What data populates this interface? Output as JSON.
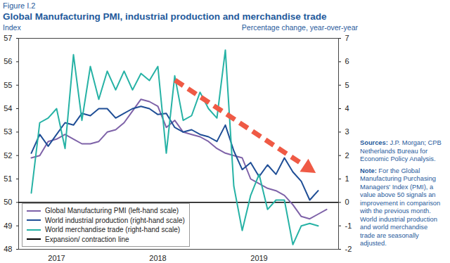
{
  "chart_data": {
    "type": "line",
    "figure_label": "Figure I.2",
    "title": "Global Manufacturing PMI, industrial production and merchandise trade",
    "y_label": "Index",
    "y2_label": "Percentage change, year-over-year",
    "categories": [
      null,
      null,
      null,
      "2017",
      null,
      null,
      null,
      null,
      null,
      null,
      null,
      null,
      null,
      null,
      null,
      "2018",
      null,
      null,
      null,
      null,
      null,
      null,
      null,
      null,
      null,
      null,
      null,
      "2019",
      null,
      null,
      null,
      null,
      null,
      null,
      null,
      null
    ],
    "ylim": [
      48,
      57
    ],
    "yticks": [
      48,
      49,
      50,
      51,
      52,
      53,
      54,
      55,
      56,
      57
    ],
    "y2lim": [
      -2,
      7
    ],
    "y2ticks": [
      -2,
      -1,
      0,
      1,
      2,
      3,
      4,
      5,
      6,
      7
    ],
    "grid": false,
    "legend": "lower left",
    "series": [
      {
        "name": "Global Manufacturing PMI (left-hand scale)",
        "color": "#7e62a8",
        "axis": "y",
        "values": [
          51.9,
          52.0,
          52.6,
          52.7,
          52.9,
          52.7,
          52.5,
          52.5,
          52.6,
          53.0,
          53.1,
          53.4,
          53.9,
          54.4,
          54.3,
          54.1,
          53.2,
          53.5,
          53.0,
          52.9,
          52.8,
          52.6,
          52.3,
          52.1,
          52.0,
          51.9,
          51.0,
          50.8,
          50.6,
          50.5,
          50.3,
          49.9,
          49.4,
          49.3,
          49.5,
          49.7
        ]
      },
      {
        "name": "World industrial production (right-hand scale)",
        "color": "#1f4e96",
        "axis": "y2",
        "values": [
          2.1,
          2.9,
          2.4,
          2.9,
          3.4,
          3.3,
          3.8,
          3.7,
          4.0,
          4.0,
          3.6,
          3.8,
          4.0,
          4.1,
          4.0,
          3.75,
          3.8,
          3.2,
          3.0,
          3.1,
          2.9,
          2.8,
          2.6,
          3.3,
          2.2,
          1.4,
          1.7,
          1.1,
          1.6,
          1.2,
          1.9,
          1.3,
          0.9,
          0.1,
          0.5,
          null
        ]
      },
      {
        "name": "World merchandise trade (right-hand scale)",
        "color": "#26b2a5",
        "axis": "y2",
        "values": [
          0.4,
          3.4,
          3.6,
          4.0,
          2.3,
          6.3,
          3.5,
          5.8,
          4.4,
          5.6,
          4.8,
          5.6,
          4.8,
          5.5,
          5.2,
          5.8,
          2.1,
          5.4,
          3.5,
          3.7,
          4.7,
          4.0,
          3.6,
          6.5,
          0.7,
          -1.2,
          0.3,
          1.2,
          -0.3,
          0.1,
          0.1,
          -1.8,
          -1.0,
          -0.9,
          -1.0,
          null
        ]
      }
    ],
    "reference_lines": [
      {
        "name": "Expansion/ contraction line",
        "value": 50,
        "color": "#000000"
      }
    ],
    "notes": [
      {
        "label": "Sources:",
        "text": "J.P. Morgan; CPB Netherlands Bureau for Economic Policy Analysis."
      },
      {
        "label": "Note:",
        "text": "For the Global Manufacturing Purchasing Managers' Index (PMI), a value above 50 signals an improvement in comparison with the previous month. World industrial production and world merchandise trade are seasonally adjusted."
      }
    ]
  }
}
